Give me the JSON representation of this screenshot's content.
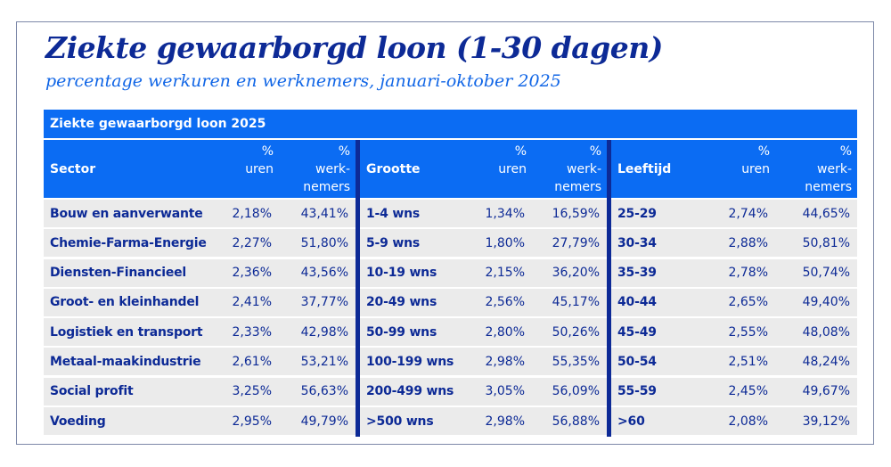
{
  "title": "Ziekte gewaarborgd loon (1-30 dagen)",
  "subtitle": "percentage werkuren en werknemers, januari-oktober 2025",
  "table": {
    "caption": "Ziekte gewaarborgd loon 2025",
    "headers": {
      "sector": "Sector",
      "grootte": "Grootte",
      "leeftijd": "Leeftijd",
      "pct": "%",
      "uren": "uren",
      "werk1": "werk-",
      "werk2": "nemers"
    },
    "rows": [
      {
        "sector": "Bouw en aanverwante",
        "s_uren": "2,18%",
        "s_werk": "43,41%",
        "grootte": "1-4 wns",
        "g_uren": "1,34%",
        "g_werk": "16,59%",
        "leeftijd": "25-29",
        "l_uren": "2,74%",
        "l_werk": "44,65%"
      },
      {
        "sector": "Chemie-Farma-Energie",
        "s_uren": "2,27%",
        "s_werk": "51,80%",
        "grootte": "5-9 wns",
        "g_uren": "1,80%",
        "g_werk": "27,79%",
        "leeftijd": "30-34",
        "l_uren": "2,88%",
        "l_werk": "50,81%"
      },
      {
        "sector": "Diensten-Financieel",
        "s_uren": "2,36%",
        "s_werk": "43,56%",
        "grootte": "10-19 wns",
        "g_uren": "2,15%",
        "g_werk": "36,20%",
        "leeftijd": "35-39",
        "l_uren": "2,78%",
        "l_werk": "50,74%"
      },
      {
        "sector": "Groot- en kleinhandel",
        "s_uren": "2,41%",
        "s_werk": "37,77%",
        "grootte": "20-49 wns",
        "g_uren": "2,56%",
        "g_werk": "45,17%",
        "leeftijd": "40-44",
        "l_uren": "2,65%",
        "l_werk": "49,40%"
      },
      {
        "sector": "Logistiek en transport",
        "s_uren": "2,33%",
        "s_werk": "42,98%",
        "grootte": "50-99 wns",
        "g_uren": "2,80%",
        "g_werk": "50,26%",
        "leeftijd": "45-49",
        "l_uren": "2,55%",
        "l_werk": "48,08%"
      },
      {
        "sector": "Metaal-maakindustrie",
        "s_uren": "2,61%",
        "s_werk": "53,21%",
        "grootte": "100-199 wns",
        "g_uren": "2,98%",
        "g_werk": "55,35%",
        "leeftijd": "50-54",
        "l_uren": "2,51%",
        "l_werk": "48,24%"
      },
      {
        "sector": "Social profit",
        "s_uren": "3,25%",
        "s_werk": "56,63%",
        "grootte": "200-499 wns",
        "g_uren": "3,05%",
        "g_werk": "56,09%",
        "leeftijd": "55-59",
        "l_uren": "2,45%",
        "l_werk": "49,67%"
      },
      {
        "sector": "Voeding",
        "s_uren": "2,95%",
        "s_werk": "49,79%",
        "grootte": ">500 wns",
        "g_uren": "2,98%",
        "g_werk": "56,88%",
        "leeftijd": ">60",
        "l_uren": "2,08%",
        "l_werk": "39,12%"
      }
    ]
  },
  "colors": {
    "accent": "#0b6cf3",
    "navy": "#0d2a96",
    "row_bg": "#ebebeb"
  }
}
